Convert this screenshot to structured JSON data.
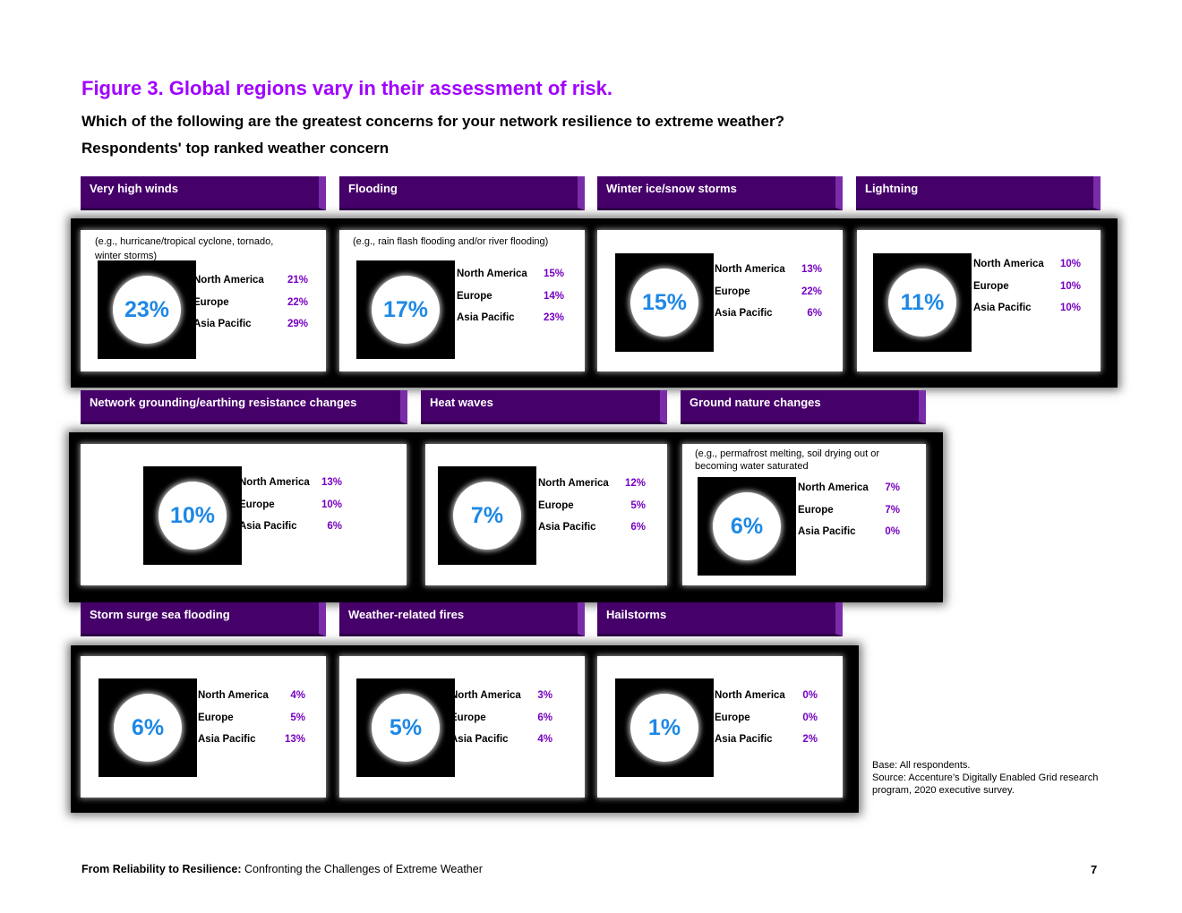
{
  "figure_title": "Figure 3. Global regions vary in their assessment of risk.",
  "question": "Which of the following are the greatest concerns for your network resilience to extreme weather?",
  "subtitle": "Respondents' top ranked weather concern",
  "region_labels": [
    "North America",
    "Europe",
    "Asia Pacific"
  ],
  "colors": {
    "accent_title": "#a100ff",
    "header_bg": "#46006a",
    "percent_blue": "#1e88e5",
    "value_purple": "#7500c0"
  },
  "panels": [
    {
      "title": "Very high winds",
      "example": "(e.g., hurricane/tropical cyclone, tornado, winter storms)",
      "overall": "23%",
      "values": [
        "21%",
        "22%",
        "29%"
      ]
    },
    {
      "title": "Flooding",
      "example": "(e.g., rain flash flooding and/or river flooding)",
      "overall": "17%",
      "values": [
        "15%",
        "14%",
        "23%"
      ]
    },
    {
      "title": "Winter ice/snow storms",
      "example": "",
      "overall": "15%",
      "values": [
        "13%",
        "22%",
        "6%"
      ]
    },
    {
      "title": "Lightning",
      "example": "",
      "overall": "11%",
      "values": [
        "10%",
        "10%",
        "10%"
      ]
    },
    {
      "title": "Network grounding/earthing resistance changes",
      "example": "",
      "overall": "10%",
      "values": [
        "13%",
        "10%",
        "6%"
      ]
    },
    {
      "title": "Heat waves",
      "example": "",
      "overall": "7%",
      "values": [
        "12%",
        "5%",
        "6%"
      ]
    },
    {
      "title": "Ground nature changes",
      "example": "(e.g., permafrost melting, soil drying out or becoming water saturated",
      "overall": "6%",
      "values": [
        "7%",
        "7%",
        "0%"
      ]
    },
    {
      "title": "Storm surge sea flooding",
      "example": "",
      "overall": "6%",
      "values": [
        "4%",
        "5%",
        "13%"
      ]
    },
    {
      "title": "Weather-related fires",
      "example": "",
      "overall": "5%",
      "values": [
        "3%",
        "6%",
        "4%"
      ]
    },
    {
      "title": "Hailstorms",
      "example": "",
      "overall": "1%",
      "values": [
        "0%",
        "0%",
        "2%"
      ]
    }
  ],
  "base_note": "Base: All respondents.",
  "source_note": "Source: Accenture’s Digitally Enabled Grid research program, 2020 executive survey.",
  "footer": {
    "bold": "From Reliability to Resilience:",
    "rest": " Confronting the Challenges of Extreme Weather"
  },
  "page_number": "7"
}
